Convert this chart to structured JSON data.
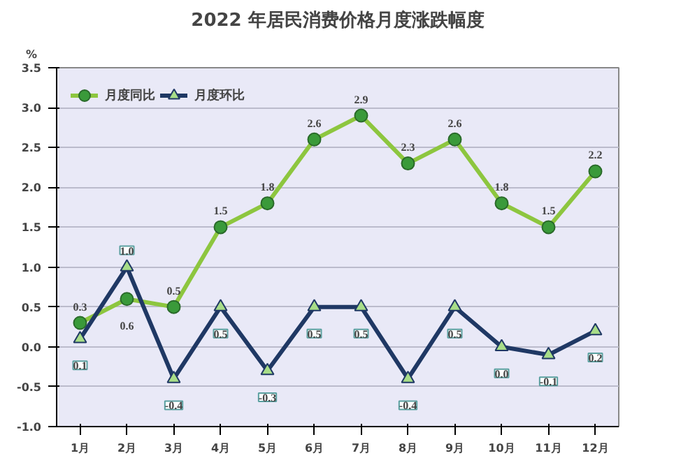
{
  "chart_data": {
    "type": "line",
    "title": "2022 年居民消费价格月度涨跌幅度",
    "ylabel": "%",
    "categories": [
      "1月",
      "2月",
      "3月",
      "4月",
      "5月",
      "6月",
      "7月",
      "8月",
      "9月",
      "10月",
      "11月",
      "12月"
    ],
    "series": [
      {
        "name": "月度同比",
        "color": "#8dc63f",
        "values": [
          0.3,
          0.6,
          0.5,
          1.5,
          1.8,
          2.6,
          2.9,
          2.3,
          2.6,
          1.8,
          1.5,
          2.2
        ],
        "marker": "circle",
        "value_labels": [
          "0.3",
          "0.6",
          "0.5",
          "1.5",
          "1.8",
          "2.6",
          "2.9",
          "2.3",
          "2.6",
          "1.8",
          "1.5",
          "2.2"
        ]
      },
      {
        "name": "月度环比",
        "color": "#1f3864",
        "values": [
          0.1,
          1.0,
          -0.4,
          0.5,
          -0.3,
          0.5,
          0.5,
          -0.4,
          0.5,
          0.0,
          -0.1,
          0.2
        ],
        "marker": "triangle",
        "value_labels": [
          "0.1",
          "1.0",
          "-0.4",
          "0.5",
          "-0.3",
          "0.5",
          "0.5",
          "-0.4",
          "0.5",
          "0.0",
          "-0.1",
          "0.2"
        ]
      }
    ],
    "ylim": [
      -1.0,
      3.5
    ],
    "yticks": [
      {
        "value": -1.0,
        "label": "-1.0"
      },
      {
        "value": -0.5,
        "label": "-0.5"
      },
      {
        "value": 0,
        "label": "0.0"
      },
      {
        "value": 0.5,
        "label": "0.5"
      },
      {
        "value": 1.0,
        "label": "1.0"
      },
      {
        "value": 1.5,
        "label": "1.5"
      },
      {
        "value": 2.0,
        "label": "2.0"
      },
      {
        "value": 2.5,
        "label": "2.5"
      },
      {
        "value": 3.0,
        "label": "3.0"
      },
      {
        "value": 3.5,
        "label": "3.5"
      }
    ],
    "grid": "y",
    "legend": "top left",
    "line_style": "solid"
  }
}
